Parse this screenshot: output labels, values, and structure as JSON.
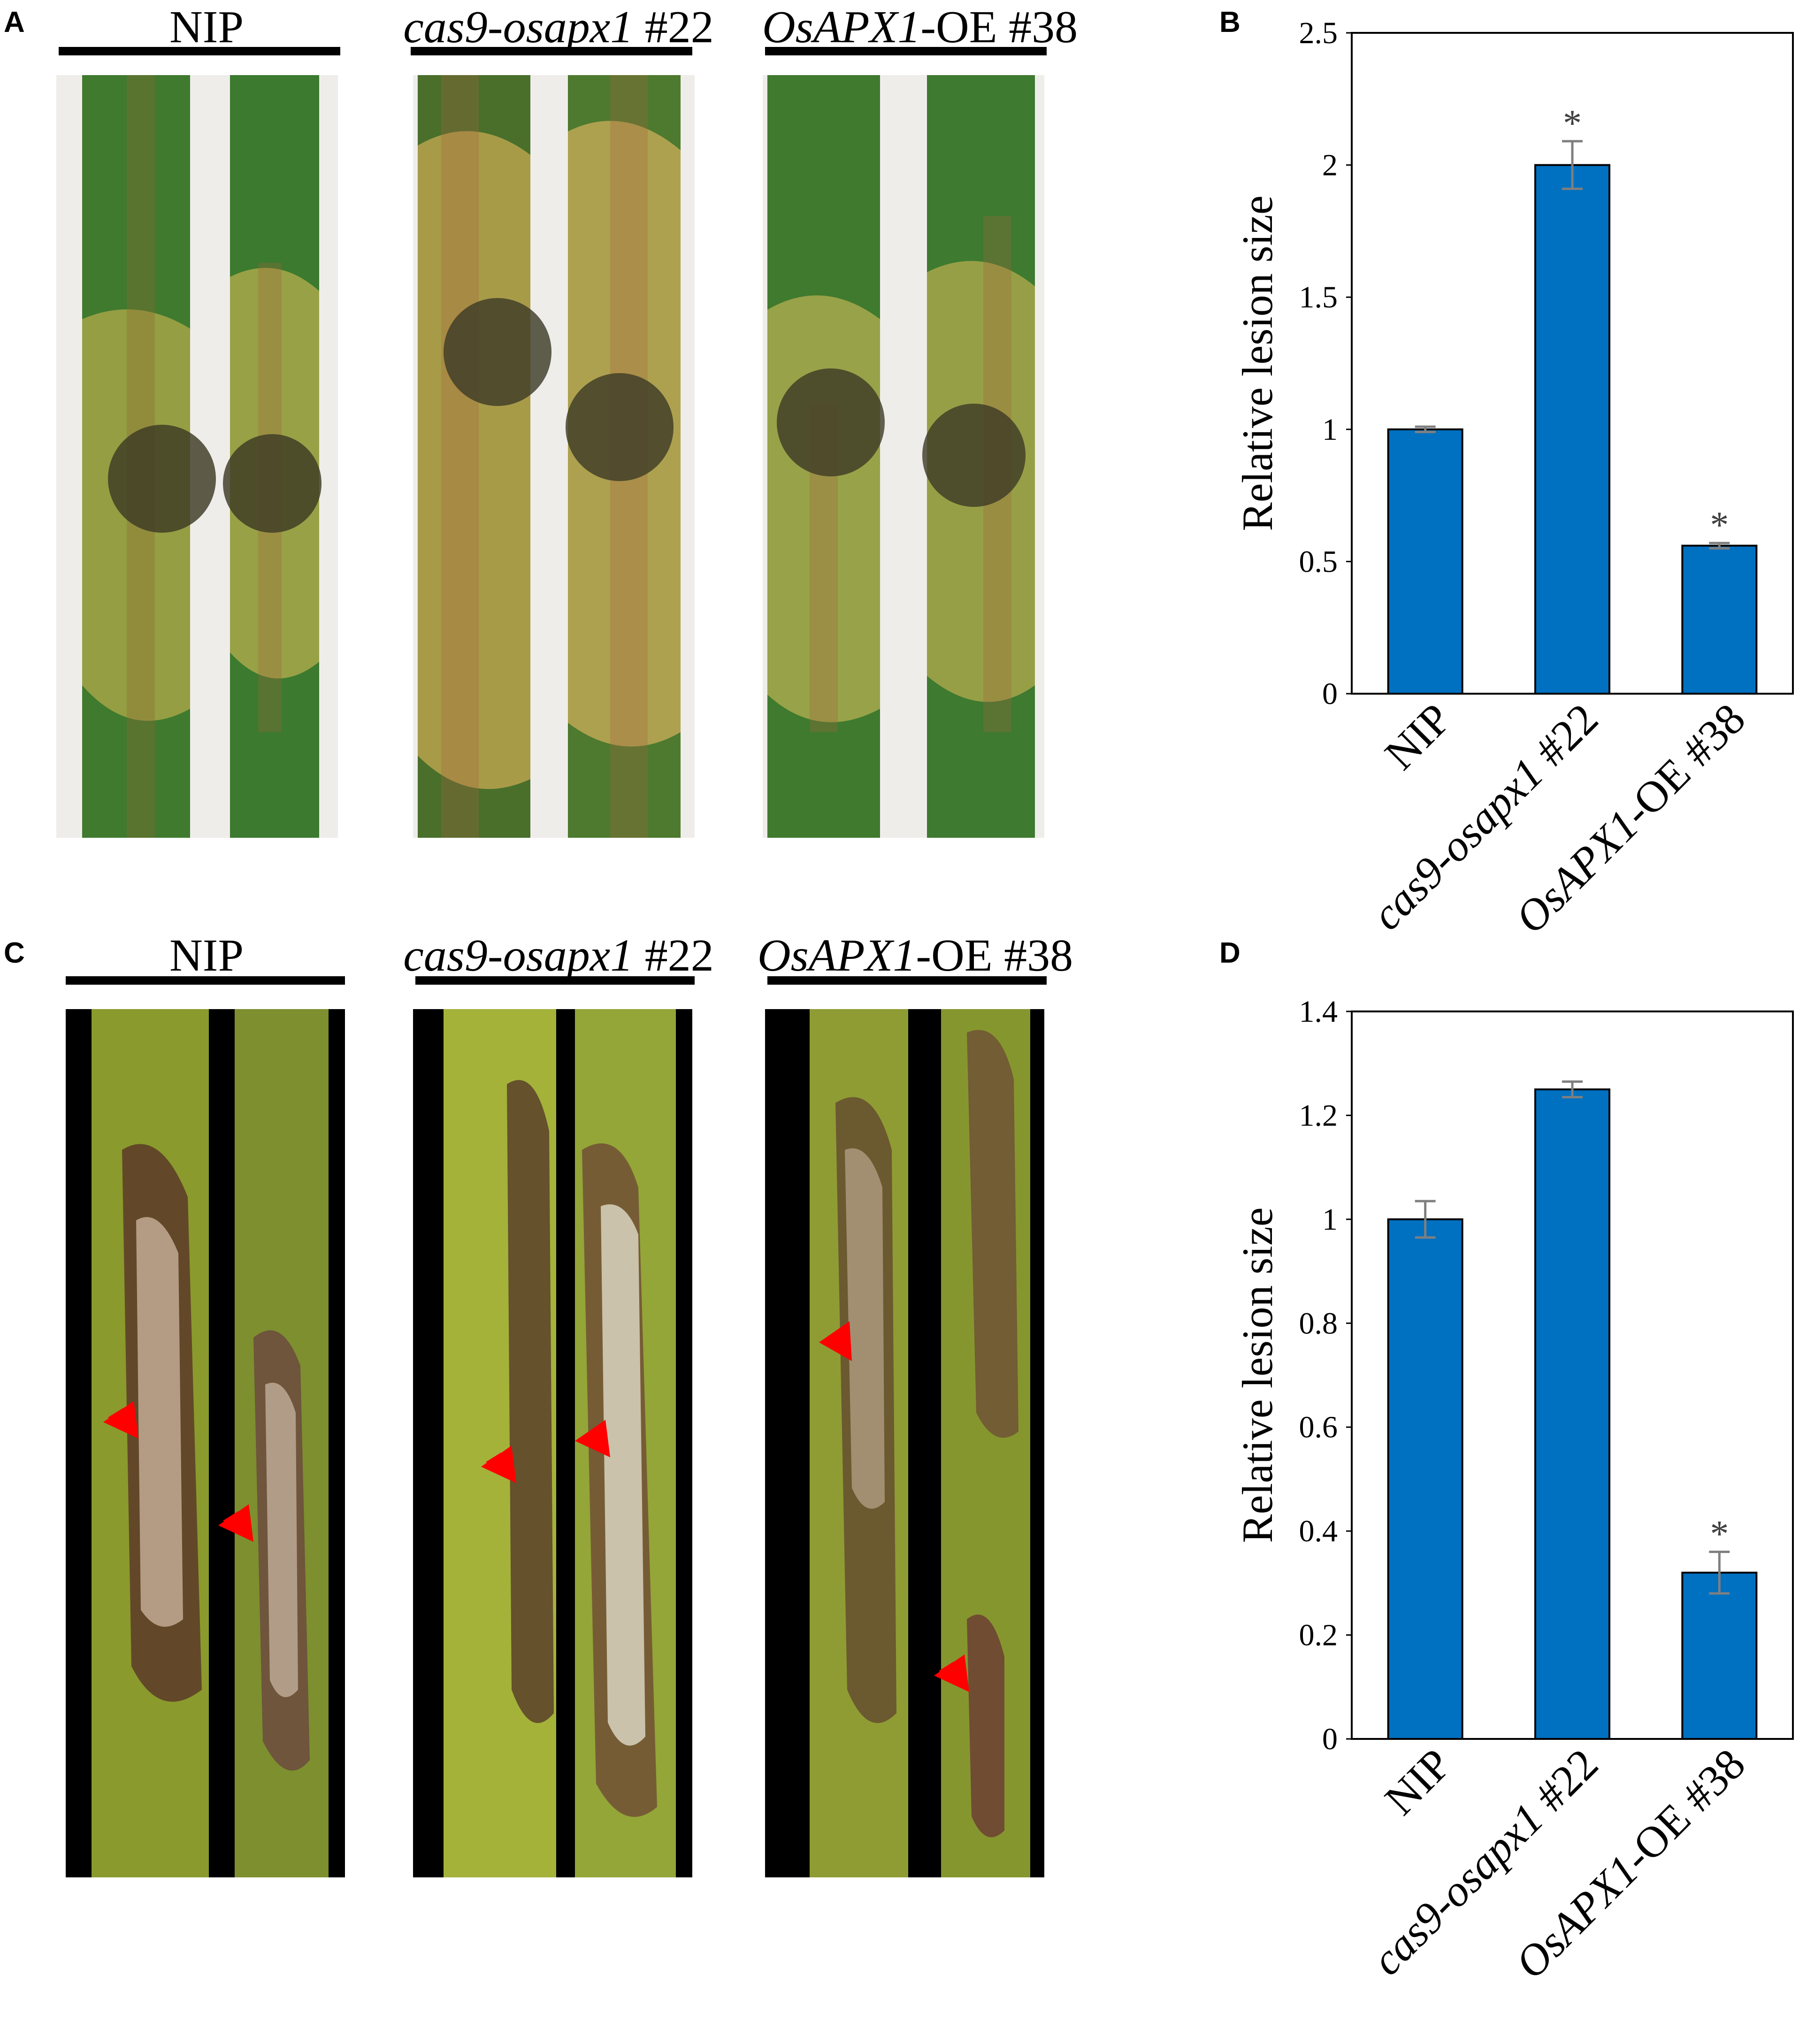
{
  "panels": {
    "a": "A",
    "b": "B",
    "c": "C",
    "d": "D"
  },
  "genotype_labels": {
    "nip": "NIP",
    "mutant_italic": "cas9-osapx1",
    "mutant_suffix": " #22",
    "oe_italic": "OsAPX1",
    "oe_suffix": "-OE #38"
  },
  "colors": {
    "bar": "#0070C0",
    "arrow": "#FF0000",
    "error": "#7F7F7F"
  },
  "chart_data": [
    {
      "panel": "B",
      "type": "bar",
      "categories": [
        "NIP",
        "cas9-osapx1 #22",
        "OsAPX1-OE #38"
      ],
      "values": [
        1.0,
        2.0,
        0.56
      ],
      "errors": [
        0.01,
        0.09,
        0.01
      ],
      "significance": [
        "",
        "*",
        "*"
      ],
      "ylabel": "Relative lesion size",
      "ylim": [
        0,
        2.5
      ],
      "yticks": [
        "0",
        "0.5",
        "1",
        "1.5",
        "2",
        "2.5"
      ],
      "grid": false
    },
    {
      "panel": "D",
      "type": "bar",
      "categories": [
        "NIP",
        "cas9-osapx1 #22",
        "OsAPX1-OE #38"
      ],
      "values": [
        1.0,
        1.25,
        0.32
      ],
      "errors": [
        0.035,
        0.015,
        0.04
      ],
      "significance": [
        "",
        "",
        "*"
      ],
      "ylabel": "Relative lesion size",
      "ylim": [
        0,
        1.4
      ],
      "yticks": [
        "0",
        "0.2",
        "0.4",
        "0.6",
        "0.8",
        "1",
        "1.2",
        "1.4"
      ],
      "grid": false
    }
  ]
}
